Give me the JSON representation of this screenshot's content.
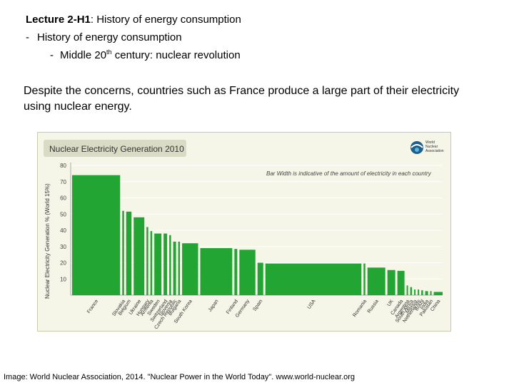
{
  "header": {
    "lecture_bold": "Lecture 2-H1",
    "lecture_rest": ": History of energy consumption",
    "bullet1": "History of energy consumption",
    "bullet2_pre": "Middle 20",
    "bullet2_sup": "th",
    "bullet2_post": " century: nuclear revolution"
  },
  "statement": "Despite the concerns, countries such as France produce a large part of their electricity using nuclear energy.",
  "caption": "Image: World Nuclear Association, 2014. \"Nuclear Power in the World Today\". www.world-nuclear.org",
  "colors": {
    "bar": "#22a532",
    "background": "#f5f6e8",
    "title_box": "#d9dbc4",
    "grid": "#ffffff"
  },
  "chart_data": {
    "type": "bar",
    "title": "Nuclear Electricity Generation 2010",
    "logo_text": [
      "World",
      "Nuclear",
      "Association"
    ],
    "note": "Bar Width is indicative of the amount of electricity in each country",
    "ylabel": "Nuclear Electricity Generation % (World 15%)",
    "ylim": [
      0,
      80
    ],
    "yticks": [
      10,
      20,
      30,
      40,
      50,
      60,
      70,
      80
    ],
    "categories": [
      "France",
      "Slovakia",
      "Belgium",
      "Ukraine",
      "Hungary",
      "Armenia",
      "Sweden",
      "Switzerland",
      "Slovenia",
      "Czech Republic",
      "Bulgaria",
      "South Korea",
      "Japan",
      "Finland",
      "Germany",
      "Spain",
      "USA",
      "Romania",
      "Russia",
      "UK",
      "Canada",
      "Argentina",
      "South Africa",
      "Mexico",
      "Netherlands",
      "Brazil",
      "India",
      "Pakistan",
      "China"
    ],
    "values": [
      74,
      52,
      51.5,
      48,
      42,
      39.5,
      38,
      38,
      37,
      33,
      33,
      32,
      29,
      28.5,
      28,
      20,
      19.5,
      19.5,
      17,
      15.5,
      15,
      6,
      5,
      3.5,
      3.5,
      3,
      2.5,
      2.5,
      2
    ],
    "bar_width_share": [
      13.5,
      0.5,
      1.5,
      3,
      0.5,
      0.5,
      2,
      1,
      0.5,
      0.8,
      0.5,
      4.5,
      9,
      0.8,
      4.5,
      1.6,
      27,
      0.5,
      5,
      2.2,
      2,
      0.3,
      0.5,
      0.3,
      0.2,
      0.5,
      0.8,
      0.2,
      2.5
    ]
  }
}
